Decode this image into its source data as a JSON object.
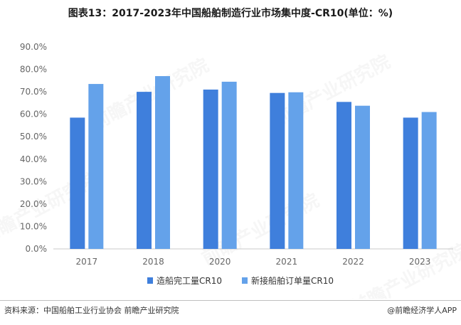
{
  "title": "图表13：2017-2023年中国船舶制造行业市场集中度-CR10(单位：%)",
  "watermark": {
    "brand": "前瞻产业研究院"
  },
  "chart_data": {
    "type": "bar",
    "categories": [
      "2017",
      "2018",
      "2020",
      "2021",
      "2022",
      "2023"
    ],
    "series": [
      {
        "name": "造船完工量CR10",
        "color": "#3f7fdc",
        "values": [
          58.5,
          70.0,
          71.0,
          69.5,
          65.5,
          58.5
        ]
      },
      {
        "name": "新接船舶订单量CR10",
        "color": "#64a2ea",
        "values": [
          73.5,
          77.0,
          74.5,
          69.8,
          63.8,
          61.0
        ]
      }
    ],
    "ylim": [
      0,
      90
    ],
    "yticks": [
      "0.0%",
      "10.0%",
      "20.0%",
      "30.0%",
      "40.0%",
      "50.0%",
      "60.0%",
      "70.0%",
      "80.0%",
      "90.0%"
    ],
    "ytick_values": [
      0,
      10,
      20,
      30,
      40,
      50,
      60,
      70,
      80,
      90
    ],
    "legend_position": "bottom",
    "grid": false
  },
  "footer": {
    "source": "资料来源：中国船舶工业行业协会 前瞻产业研究院",
    "brand": "@前瞻经济学人APP"
  }
}
